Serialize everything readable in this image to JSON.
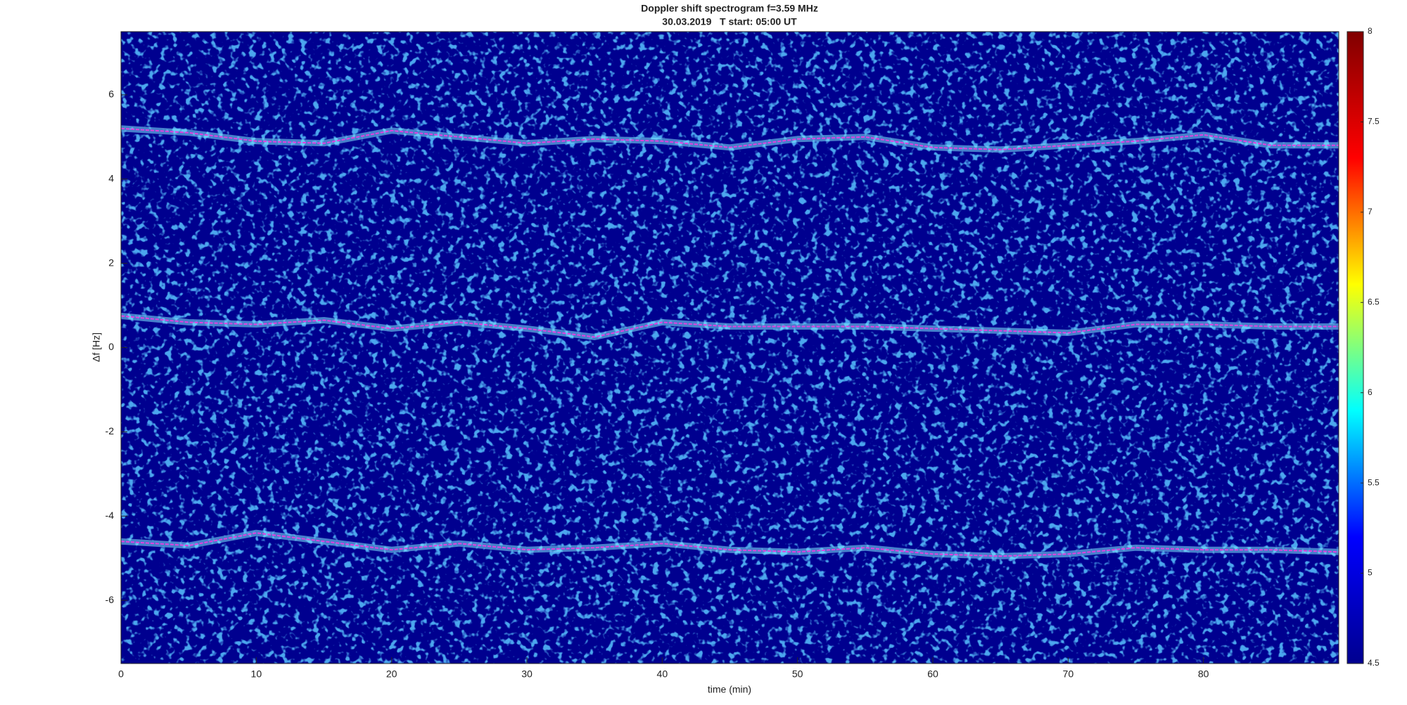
{
  "chart_data": {
    "type": "spectrogram",
    "title": "Doppler shift spectrogram f=3.59 MHz",
    "subtitle": "30.03.2019   T start: 05:00 UT",
    "x_label": "time (min)",
    "y_label": "Δf [Hz]",
    "x": [
      0,
      5,
      10,
      15,
      20,
      25,
      30,
      35,
      40,
      45,
      50,
      55,
      60,
      65,
      70,
      75,
      80,
      85,
      90
    ],
    "series": [
      {
        "color": "#e040e0",
        "values": [
          5.2,
          5.1,
          4.9,
          4.85,
          5.15,
          5.0,
          4.85,
          4.95,
          4.9,
          4.75,
          4.95,
          5.0,
          4.75,
          4.7,
          4.8,
          4.9,
          5.05,
          4.8,
          4.8
        ]
      },
      {
        "color": "#e040e0",
        "values": [
          0.75,
          0.6,
          0.55,
          0.65,
          0.45,
          0.6,
          0.45,
          0.25,
          0.6,
          0.5,
          0.5,
          0.5,
          0.45,
          0.4,
          0.35,
          0.55,
          0.55,
          0.5,
          0.5
        ]
      },
      {
        "color": "#e040e0",
        "values": [
          -4.6,
          -4.7,
          -4.4,
          -4.6,
          -4.8,
          -4.65,
          -4.8,
          -4.75,
          -4.65,
          -4.8,
          -4.85,
          -4.75,
          -4.9,
          -4.95,
          -4.9,
          -4.75,
          -4.8,
          -4.8,
          -4.85
        ]
      }
    ],
    "xlim": [
      0,
      90
    ],
    "xticks": [
      0,
      10,
      20,
      30,
      40,
      50,
      60,
      70,
      80
    ],
    "ylim": [
      -7.5,
      7.5
    ],
    "yticks": [
      -6,
      -4,
      -2,
      0,
      2,
      4,
      6
    ],
    "clim": [
      4.5,
      8
    ],
    "cticks": [
      4.5,
      5,
      5.5,
      6,
      6.5,
      7,
      7.5,
      8
    ],
    "colormap": [
      "#00008f",
      "#0000ff",
      "#00ffff",
      "#ffff00",
      "#ff0000",
      "#800000"
    ]
  }
}
